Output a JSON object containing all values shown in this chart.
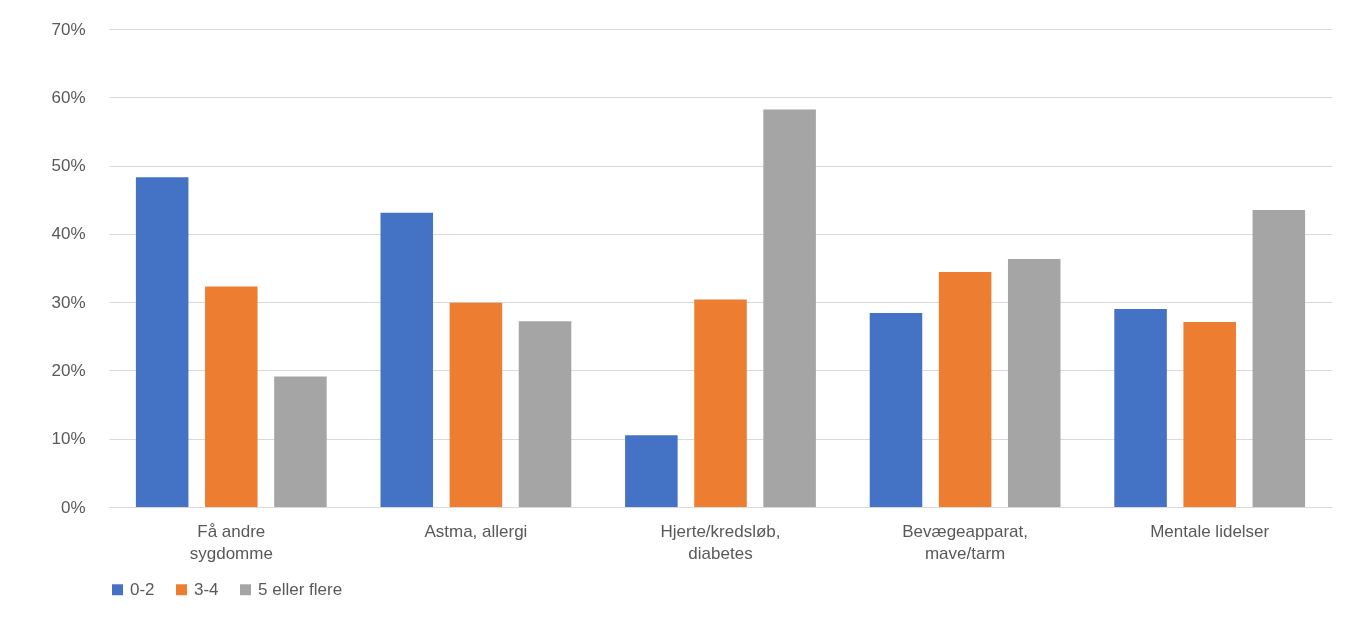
{
  "chart_data": {
    "type": "bar",
    "categories": [
      "Få andre sygdomme",
      "Astma, allergi",
      "Hjerte/kredsløb, diabetes",
      "Bevægeapparat, mave/tarm",
      "Mentale lidelser"
    ],
    "series": [
      {
        "name": "0-2",
        "color": "#4472c4",
        "values": [
          48.3,
          43.1,
          10.5,
          28.4,
          29.0
        ]
      },
      {
        "name": "3-4",
        "color": "#ed7d31",
        "values": [
          32.3,
          29.9,
          30.4,
          34.4,
          27.1
        ]
      },
      {
        "name": "5 eller flere",
        "color": "#a5a5a5",
        "values": [
          19.1,
          27.2,
          58.2,
          36.3,
          43.5
        ]
      }
    ],
    "ylim": [
      0,
      70
    ],
    "yticks": [
      {
        "value": 0,
        "label": "0%"
      },
      {
        "value": 10,
        "label": "10%"
      },
      {
        "value": 20,
        "label": "20%"
      },
      {
        "value": 30,
        "label": "30%"
      },
      {
        "value": 40,
        "label": "40%"
      },
      {
        "value": 50,
        "label": "50%"
      },
      {
        "value": 60,
        "label": "60%"
      },
      {
        "value": 70,
        "label": "70%"
      }
    ],
    "grid": "y",
    "legend": "bottom"
  }
}
